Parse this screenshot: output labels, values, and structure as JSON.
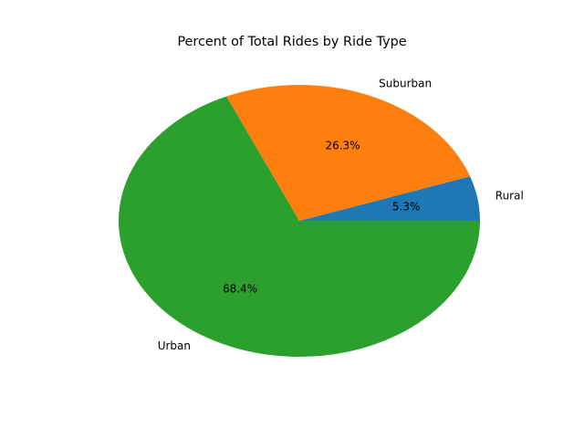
{
  "chart_data": {
    "type": "pie",
    "title": "Percent of Total Rides by Ride Type",
    "categories": [
      "Rural",
      "Suburban",
      "Urban"
    ],
    "values": [
      5.3,
      26.3,
      68.4
    ],
    "percent_labels": [
      "5.3%",
      "26.3%",
      "68.4%"
    ],
    "colors": [
      "#1f77b4",
      "#ff7f0e",
      "#2ca02c"
    ],
    "start_angle_deg": 0,
    "direction": "counterclockwise"
  }
}
